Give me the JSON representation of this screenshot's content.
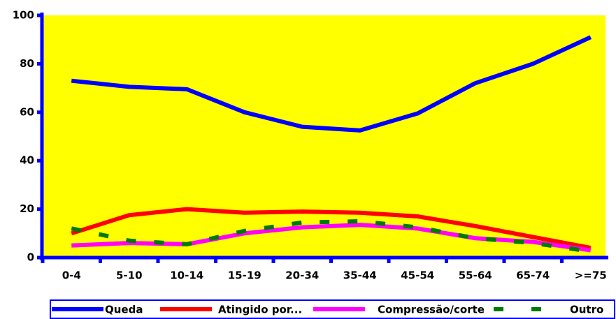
{
  "chart_data": {
    "type": "line",
    "categories": [
      "0-4",
      "5-10",
      "10-14",
      "15-19",
      "20-34",
      "35-44",
      "45-54",
      "55-64",
      "65-74",
      ">=75"
    ],
    "series": [
      {
        "name": "Queda",
        "color": "#0000ff",
        "values": [
          73,
          70.5,
          69.5,
          60,
          54,
          52.5,
          59.5,
          72,
          80,
          91
        ]
      },
      {
        "name": "Atingido por...",
        "color": "#ff0000",
        "values": [
          10,
          17.5,
          20,
          18.5,
          19,
          18.5,
          17,
          13,
          8.5,
          4
        ]
      },
      {
        "name": "Compressão/corte",
        "color": "#ff00ff",
        "values": [
          5,
          6,
          5.5,
          10,
          12.5,
          13.5,
          12,
          8,
          6.5,
          3
        ]
      },
      {
        "name": "Outro",
        "color": "#007a00",
        "dashed": true,
        "values": [
          12,
          7,
          5.5,
          11,
          14.5,
          15,
          12.5,
          8,
          6,
          2.5
        ]
      }
    ],
    "ylim": [
      0,
      100
    ],
    "yticks": [
      0,
      20,
      40,
      60,
      80,
      100
    ],
    "background": "#ffff00",
    "legend": "bottom"
  }
}
